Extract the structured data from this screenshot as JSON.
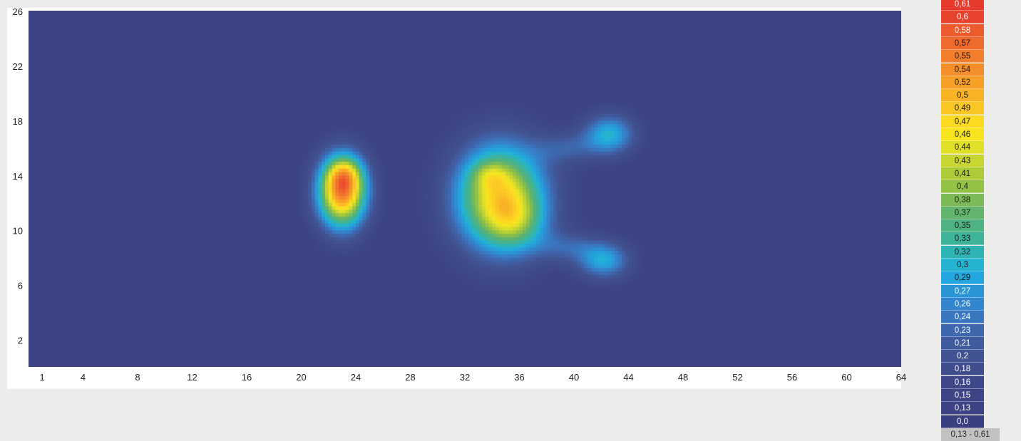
{
  "chart_data": {
    "type": "heatmap",
    "title": "",
    "xlabel": "",
    "ylabel": "",
    "xlim": [
      0,
      64
    ],
    "ylim": [
      0,
      26
    ],
    "x_ticks": [
      "1",
      "4",
      "8",
      "12",
      "16",
      "20",
      "24",
      "28",
      "32",
      "36",
      "40",
      "44",
      "48",
      "52",
      "56",
      "60",
      "64"
    ],
    "y_ticks": [
      "2",
      "6",
      "10",
      "14",
      "18",
      "22",
      "26"
    ],
    "background_value": 0.13,
    "hotspots": [
      {
        "x": 23,
        "y": 12.8,
        "sx": 1.3,
        "sy": 1.9,
        "amp": 0.41
      },
      {
        "x": 23.2,
        "y": 14.1,
        "sx": 0.9,
        "sy": 0.9,
        "amp": 0.1
      },
      {
        "x": 34.6,
        "y": 12.4,
        "sx": 2.4,
        "sy": 2.8,
        "amp": 0.34
      },
      {
        "x": 35.8,
        "y": 10.5,
        "sx": 1.5,
        "sy": 1.4,
        "amp": 0.08
      },
      {
        "x": 33.8,
        "y": 14.0,
        "sx": 0.9,
        "sy": 0.7,
        "amp": 0.06
      },
      {
        "x": 42.6,
        "y": 17.0,
        "sx": 1.4,
        "sy": 1.1,
        "amp": 0.17
      },
      {
        "x": 42.2,
        "y": 7.8,
        "sx": 1.4,
        "sy": 1.0,
        "amp": 0.16
      },
      {
        "x": 39.5,
        "y": 16.0,
        "sx": 1.6,
        "sy": 0.8,
        "amp": 0.07
      },
      {
        "x": 39.5,
        "y": 8.8,
        "sx": 1.6,
        "sy": 0.8,
        "amp": 0.07
      }
    ],
    "colorscale": {
      "items": [
        {
          "label": "0,61",
          "color": "#e53a2c",
          "text": "#ffffff"
        },
        {
          "label": "0,6",
          "color": "#e8432d",
          "text": "#ffffff"
        },
        {
          "label": "0,58",
          "color": "#ec5a2e",
          "text": "#ffffff"
        },
        {
          "label": "0,57",
          "color": "#ef6b2d",
          "text": "#1b1b1b"
        },
        {
          "label": "0,55",
          "color": "#f27d2b",
          "text": "#1b1b1b"
        },
        {
          "label": "0,54",
          "color": "#f48e2a",
          "text": "#1b1b1b"
        },
        {
          "label": "0,52",
          "color": "#f7a028",
          "text": "#1b1b1b"
        },
        {
          "label": "0,5",
          "color": "#f9b426",
          "text": "#1b1b1b"
        },
        {
          "label": "0,49",
          "color": "#fbc724",
          "text": "#1b1b1b"
        },
        {
          "label": "0,47",
          "color": "#fcda22",
          "text": "#1b1b1b"
        },
        {
          "label": "0,46",
          "color": "#f7e41f",
          "text": "#1b1b1b"
        },
        {
          "label": "0,44",
          "color": "#e1e028",
          "text": "#1b1b1b"
        },
        {
          "label": "0,43",
          "color": "#c9d631",
          "text": "#1b1b1b"
        },
        {
          "label": "0,41",
          "color": "#aecb3a",
          "text": "#1b1b1b"
        },
        {
          "label": "0,4",
          "color": "#94c245",
          "text": "#1b1b1b"
        },
        {
          "label": "0,38",
          "color": "#7bba56",
          "text": "#1b1b1b"
        },
        {
          "label": "0,37",
          "color": "#63b46c",
          "text": "#1b1b1b"
        },
        {
          "label": "0,35",
          "color": "#4eb282",
          "text": "#1b1b1b"
        },
        {
          "label": "0,33",
          "color": "#3db39a",
          "text": "#1b1b1b"
        },
        {
          "label": "0,32",
          "color": "#2fb4b5",
          "text": "#1b1b1b"
        },
        {
          "label": "0,3",
          "color": "#25b3d2",
          "text": "#1b1b1b"
        },
        {
          "label": "0,29",
          "color": "#22a6dd",
          "text": "#1b1b1b"
        },
        {
          "label": "0,27",
          "color": "#2a96d6",
          "text": "#ffffff"
        },
        {
          "label": "0,26",
          "color": "#3386cd",
          "text": "#ffffff"
        },
        {
          "label": "0,24",
          "color": "#3a77bf",
          "text": "#ffffff"
        },
        {
          "label": "0,23",
          "color": "#3e68ae",
          "text": "#ffffff"
        },
        {
          "label": "0,21",
          "color": "#405c9f",
          "text": "#ffffff"
        },
        {
          "label": "0,2",
          "color": "#415393",
          "text": "#ffffff"
        },
        {
          "label": "0,18",
          "color": "#404d8c",
          "text": "#ffffff"
        },
        {
          "label": "0,16",
          "color": "#3e4888",
          "text": "#ffffff"
        },
        {
          "label": "0,15",
          "color": "#3d4585",
          "text": "#ffffff"
        },
        {
          "label": "0,13",
          "color": "#3c4283",
          "text": "#ffffff"
        },
        {
          "label": "0,0",
          "color": "#3a3f80",
          "text": "#ffffff"
        }
      ],
      "range_label": "0,13 - 0,61"
    }
  }
}
